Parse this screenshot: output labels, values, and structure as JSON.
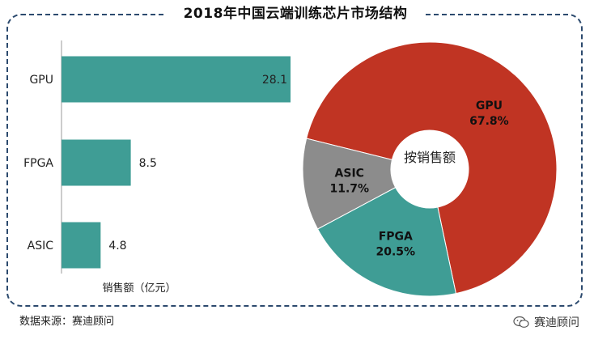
{
  "title": "2018年中国云端训练芯片市场结构",
  "source": "数据来源：赛迪顾问",
  "brand": {
    "name": "赛迪顾问",
    "icon": "wechat-icon"
  },
  "colors": {
    "bar": "#3f9d95",
    "gpu": "#c03423",
    "fpga": "#3f9d95",
    "asic": "#8c8c8c",
    "frame": "#2c4a6e"
  },
  "chart_data": [
    {
      "type": "bar",
      "orientation": "horizontal",
      "categories": [
        "GPU",
        "FPGA",
        "ASIC"
      ],
      "values": [
        28.1,
        8.5,
        4.8
      ],
      "value_labels": [
        "28.1",
        "8.5",
        "4.8"
      ],
      "xlabel": "销售额（亿元）",
      "xlim": [
        0,
        28.1
      ]
    },
    {
      "type": "pie",
      "style": "donut",
      "center_label": "按销售额",
      "slices": [
        {
          "name": "GPU",
          "value": 67.8,
          "label": "67.8%"
        },
        {
          "name": "FPGA",
          "value": 20.5,
          "label": "20.5%"
        },
        {
          "name": "ASIC",
          "value": 11.7,
          "label": "11.7%"
        }
      ]
    }
  ]
}
